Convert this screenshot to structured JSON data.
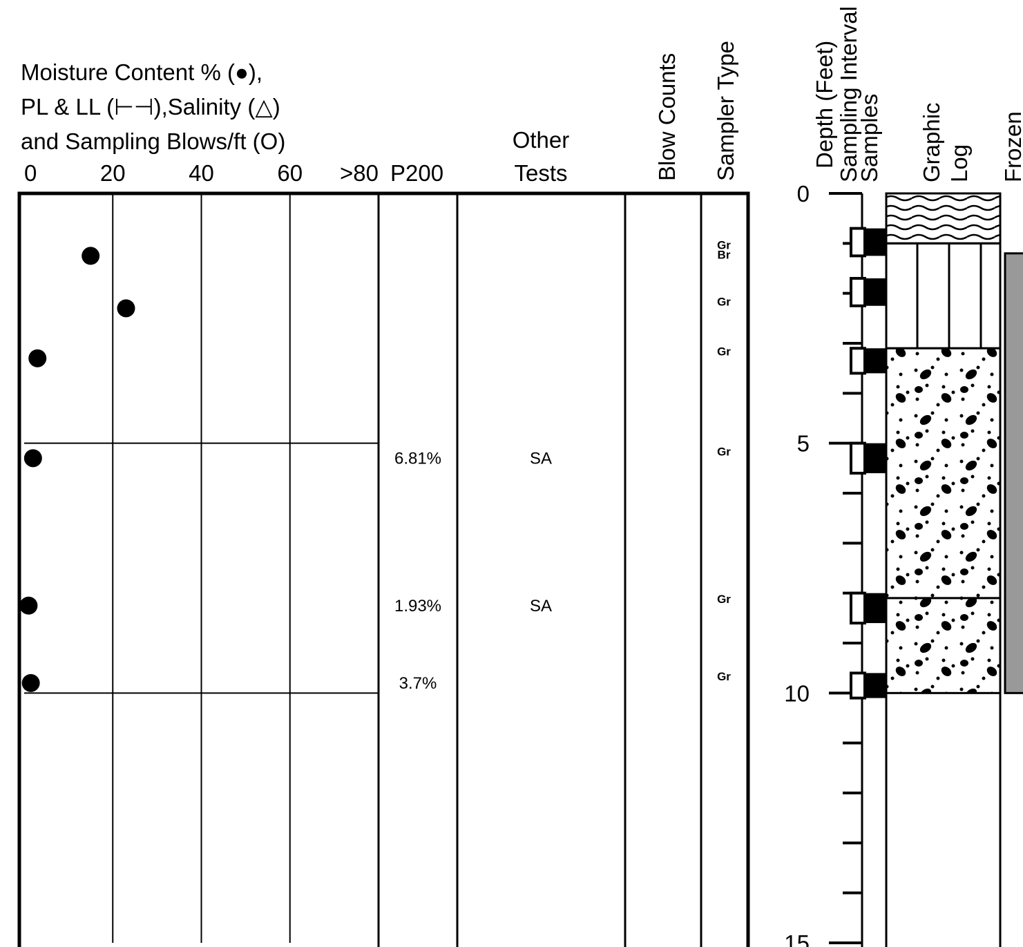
{
  "chart_data": {
    "type": "scatter",
    "title_lines": [
      "Moisture Content % (●),",
      "PL & LL (⊢⊣),Salinity (△)",
      "and Sampling Blows/ft (O)"
    ],
    "x": [
      15,
      23,
      3,
      2,
      1,
      1.5
    ],
    "values": [
      1.25,
      2.3,
      3.3,
      5.3,
      8.25,
      9.8
    ],
    "color": "#000000",
    "xlim": [
      0,
      80
    ],
    "xticks": [
      0,
      20,
      40,
      60,
      {
        "value": 80,
        "label": ">80"
      }
    ],
    "ylim": [
      0,
      15
    ],
    "yticks": [
      0,
      5,
      10,
      15
    ],
    "minor_yticks": [
      1,
      2,
      3,
      4,
      6,
      7,
      8,
      9,
      11,
      12,
      13,
      14
    ],
    "grid": true,
    "columns": {
      "p200": "P200",
      "other_tests": [
        "Other",
        "Tests"
      ],
      "blow_counts": "Blow Counts",
      "sampler_type": "Sampler Type",
      "depth": "Depth (Feet)",
      "sampling_interval": "Sampling Interval",
      "samples": "Samples",
      "graphic_log": [
        "Graphic",
        "Log"
      ],
      "frozen": "Frozen"
    },
    "p200": [
      {
        "depth": 5.3,
        "label": "6.81%"
      },
      {
        "depth": 8.25,
        "label": "1.93%"
      },
      {
        "depth": 9.8,
        "label": "3.7%"
      }
    ],
    "other_tests": [
      {
        "depth": 5.3,
        "label": "SA"
      },
      {
        "depth": 8.25,
        "label": "SA"
      }
    ],
    "sampler_type": [
      {
        "depth": 1.25,
        "label": [
          "Gr",
          "Br"
        ]
      },
      {
        "depth": 2.3,
        "label": [
          "Gr"
        ]
      },
      {
        "depth": 3.3,
        "label": [
          "Gr"
        ]
      },
      {
        "depth": 5.3,
        "label": [
          "Gr"
        ]
      },
      {
        "depth": 8.25,
        "label": [
          "Gr"
        ]
      },
      {
        "depth": 9.8,
        "label": [
          "Gr"
        ]
      }
    ],
    "samples": [
      {
        "top": 0.7,
        "bottom": 1.25
      },
      {
        "top": 1.7,
        "bottom": 2.25
      },
      {
        "top": 3.1,
        "bottom": 3.6
      },
      {
        "top": 5.0,
        "bottom": 5.6
      },
      {
        "top": 8.0,
        "bottom": 8.6
      },
      {
        "top": 9.6,
        "bottom": 10.1
      }
    ],
    "layers": [
      {
        "top": 0,
        "bottom": 1,
        "pattern": "organic"
      },
      {
        "top": 1,
        "bottom": 3.1,
        "pattern": "columns"
      },
      {
        "top": 3.1,
        "bottom": 8.1,
        "pattern": "gravel"
      },
      {
        "top": 8.1,
        "bottom": 10,
        "pattern": "gravel"
      }
    ],
    "frozen_zone": {
      "top": 1.2,
      "bottom": 10
    }
  }
}
